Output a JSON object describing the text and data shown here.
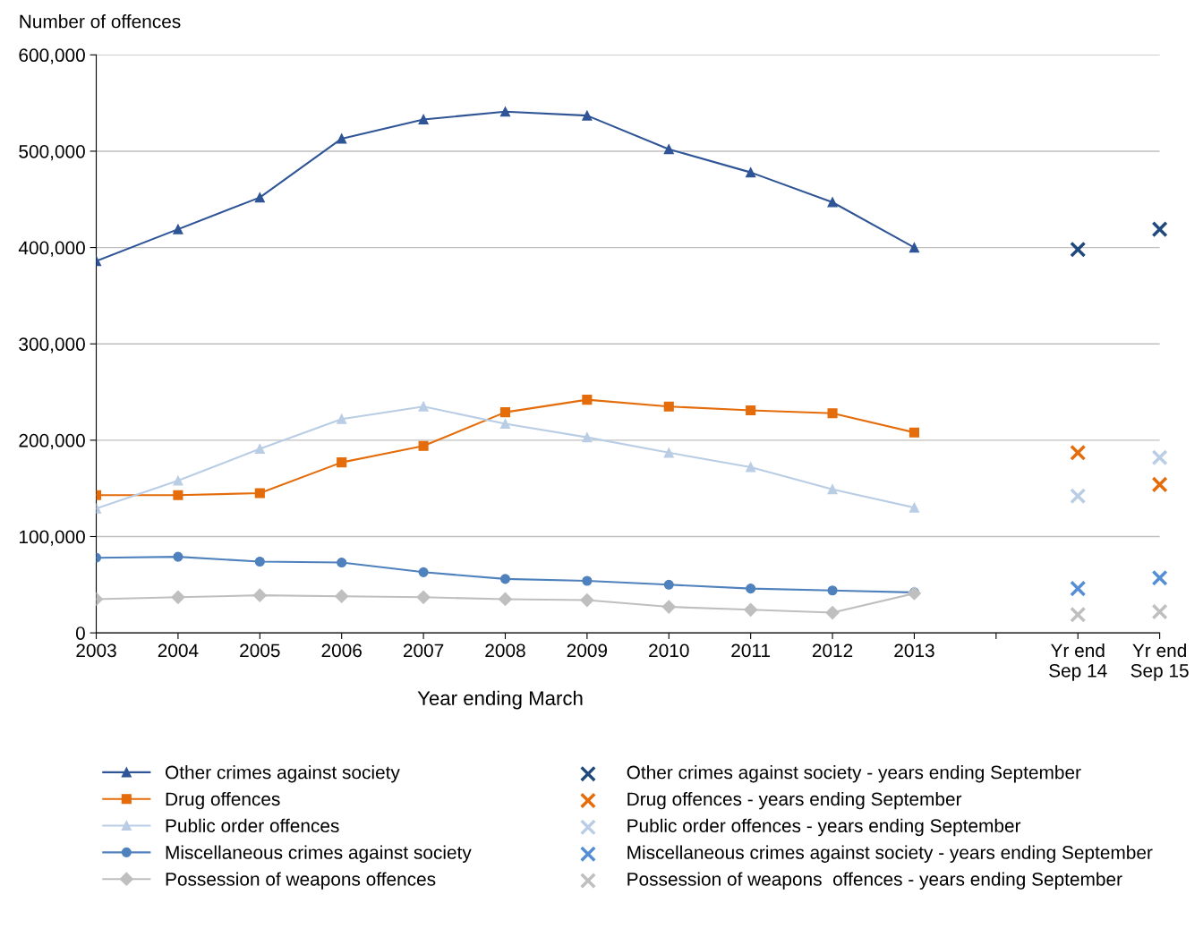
{
  "chart_data": {
    "type": "line",
    "ylabel": "Number of offences",
    "xlabel": "Year ending March",
    "categories": [
      "2003",
      "2004",
      "2005",
      "2006",
      "2007",
      "2008",
      "2009",
      "2010",
      "2011",
      "2012",
      "2013",
      null,
      "Yr end\nSep 14",
      "Yr end\nSep 15"
    ],
    "ylim": [
      0,
      600000
    ],
    "yticks": [
      0,
      {
        "value": 100000,
        "label": "100,000"
      },
      {
        "value": 200000,
        "label": "200,000"
      },
      {
        "value": 300000,
        "label": "300,000"
      },
      {
        "value": 400000,
        "label": "400,000"
      },
      {
        "value": 500000,
        "label": "500,000"
      },
      {
        "value": 600000,
        "label": "600,000"
      }
    ],
    "grid": "y",
    "legend": "bottom",
    "series": [
      {
        "name": "Other crimes against society",
        "marker": "triangle",
        "color": "#2f5597",
        "values": [
          386000,
          419000,
          452000,
          513000,
          533000,
          541000,
          537000,
          502000,
          478000,
          447000,
          400000,
          null,
          null,
          null
        ]
      },
      {
        "name": "Drug offences",
        "marker": "square",
        "color": "#e46c0a",
        "values": [
          143000,
          143000,
          145000,
          177000,
          194000,
          229000,
          242000,
          235000,
          231000,
          228000,
          208000,
          null,
          null,
          null
        ]
      },
      {
        "name": "Public order offences",
        "marker": "triangle",
        "color": "#b9cde5",
        "values": [
          129000,
          158000,
          191000,
          222000,
          235000,
          217000,
          203000,
          187000,
          172000,
          149000,
          130000,
          null,
          null,
          null
        ]
      },
      {
        "name": "Miscellaneous crimes against society",
        "marker": "circle",
        "color": "#4f81bd",
        "values": [
          78000,
          79000,
          74000,
          73000,
          63000,
          56000,
          54000,
          50000,
          46000,
          44000,
          42000,
          null,
          null,
          null
        ]
      },
      {
        "name": "Possession of weapons offences",
        "marker": "diamond",
        "color": "#bfbfbf",
        "values": [
          35000,
          37000,
          39000,
          38000,
          37000,
          35000,
          34000,
          27000,
          24000,
          21000,
          41000,
          null,
          null,
          null
        ]
      },
      {
        "name": "Other crimes against society - years ending September",
        "type": "scatter",
        "marker": "cross",
        "color": "#1f497d",
        "values": [
          null,
          null,
          null,
          null,
          null,
          null,
          null,
          null,
          null,
          null,
          null,
          null,
          398000,
          419000
        ]
      },
      {
        "name": "Drug offences - years ending September",
        "type": "scatter",
        "marker": "cross",
        "color": "#e46c0a",
        "values": [
          null,
          null,
          null,
          null,
          null,
          null,
          null,
          null,
          null,
          null,
          null,
          null,
          187000,
          154000
        ]
      },
      {
        "name": "Public order offences - years ending September",
        "type": "scatter",
        "marker": "cross",
        "color": "#b9cde5",
        "values": [
          null,
          null,
          null,
          null,
          null,
          null,
          null,
          null,
          null,
          null,
          null,
          null,
          142000,
          182000
        ]
      },
      {
        "name": "Miscellaneous crimes against society - years ending September",
        "type": "scatter",
        "marker": "cross",
        "color": "#558ed5",
        "values": [
          null,
          null,
          null,
          null,
          null,
          null,
          null,
          null,
          null,
          null,
          null,
          null,
          46000,
          57000
        ]
      },
      {
        "name": "Possession of weapons  offences - years ending September",
        "type": "scatter",
        "marker": "cross",
        "color": "#bfbfbf",
        "values": [
          null,
          null,
          null,
          null,
          null,
          null,
          null,
          null,
          null,
          null,
          null,
          null,
          19000,
          22000
        ]
      }
    ]
  }
}
